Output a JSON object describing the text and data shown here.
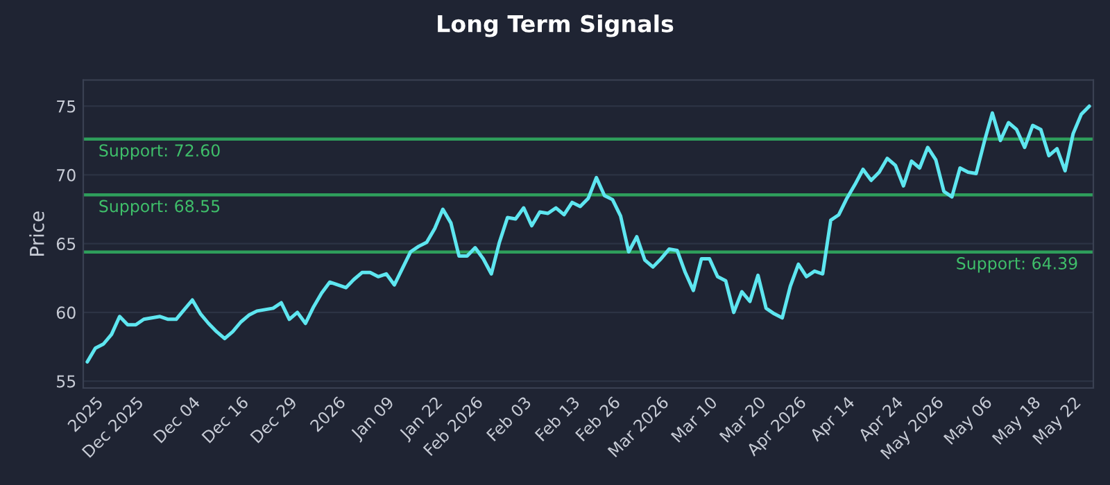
{
  "chart_data": {
    "type": "line",
    "title": "Long Term Signals",
    "ylabel": "Price",
    "categories": [
      null,
      "2025",
      null,
      null,
      null,
      null,
      "Dec 2025",
      null,
      null,
      null,
      null,
      null,
      null,
      "Dec 04",
      null,
      null,
      null,
      null,
      null,
      "Dec 16",
      null,
      null,
      null,
      null,
      null,
      "Dec 29",
      null,
      null,
      null,
      null,
      null,
      "2026",
      null,
      null,
      null,
      null,
      null,
      "Jan 09",
      null,
      null,
      null,
      null,
      null,
      "Jan 22",
      null,
      null,
      null,
      null,
      "Feb 2026",
      null,
      null,
      null,
      null,
      null,
      "Feb 03",
      null,
      null,
      null,
      null,
      null,
      "Feb 13",
      null,
      null,
      null,
      null,
      "Feb 26",
      null,
      null,
      null,
      null,
      null,
      "Mar 2026",
      null,
      null,
      null,
      null,
      null,
      "Mar 10",
      null,
      null,
      null,
      null,
      null,
      "Mar 20",
      null,
      null,
      null,
      null,
      "Apr 2026",
      null,
      null,
      null,
      null,
      null,
      "Apr 14",
      null,
      null,
      null,
      null,
      null,
      "Apr 24",
      null,
      null,
      null,
      null,
      "May 2026",
      null,
      null,
      null,
      null,
      null,
      "May 06",
      null,
      null,
      null,
      null,
      null,
      "May 18",
      null,
      null,
      null,
      null,
      "May 22",
      null,
      null
    ],
    "series": [
      {
        "color": "#5ee6f0",
        "values": [
          56.4,
          57.4,
          57.7,
          58.4,
          59.7,
          59.1,
          59.1,
          59.5,
          59.6,
          59.7,
          59.5,
          59.5,
          60.2,
          60.9,
          59.9,
          59.2,
          58.6,
          58.1,
          58.6,
          59.3,
          59.8,
          60.1,
          60.2,
          60.3,
          60.7,
          59.5,
          60.0,
          59.2,
          60.4,
          61.4,
          62.2,
          62.0,
          61.8,
          62.4,
          62.9,
          62.9,
          62.6,
          62.8,
          62.0,
          63.2,
          64.4,
          64.8,
          65.1,
          66.1,
          67.5,
          66.5,
          64.1,
          64.1,
          64.7,
          63.9,
          62.8,
          65.1,
          66.9,
          66.8,
          67.6,
          66.3,
          67.3,
          67.2,
          67.6,
          67.1,
          68.0,
          67.7,
          68.3,
          69.8,
          68.5,
          68.2,
          67.0,
          64.4,
          65.5,
          63.8,
          63.3,
          63.9,
          64.6,
          64.5,
          62.9,
          61.6,
          63.9,
          63.9,
          62.6,
          62.3,
          60.0,
          61.5,
          60.8,
          62.7,
          60.3,
          59.9,
          59.6,
          61.9,
          63.5,
          62.6,
          63.0,
          62.8,
          66.7,
          67.1,
          68.3,
          69.3,
          70.4,
          69.6,
          70.2,
          71.2,
          70.7,
          69.2,
          71.0,
          70.5,
          72.0,
          71.1,
          68.8,
          68.4,
          70.5,
          70.2,
          70.1,
          72.4,
          74.5,
          72.5,
          73.8,
          73.3,
          72.0,
          73.6,
          73.3,
          71.4,
          71.9,
          70.3,
          73.0,
          74.4,
          75.0
        ]
      }
    ],
    "ylim": [
      54.5,
      76.9
    ],
    "yticks": [
      55,
      60,
      65,
      70,
      75
    ],
    "grid": "y",
    "line_style": "solid",
    "marker": "none",
    "ref_lines": [
      {
        "axis": "y",
        "value": 72.6,
        "label": "Support: 72.60",
        "color": "#2e9e5b"
      },
      {
        "axis": "y",
        "value": 68.55,
        "label": "Support: 68.55",
        "color": "#2e9e5b"
      },
      {
        "axis": "y",
        "value": 64.39,
        "label": "Support: 64.39",
        "color": "#2e9e5b"
      }
    ]
  }
}
